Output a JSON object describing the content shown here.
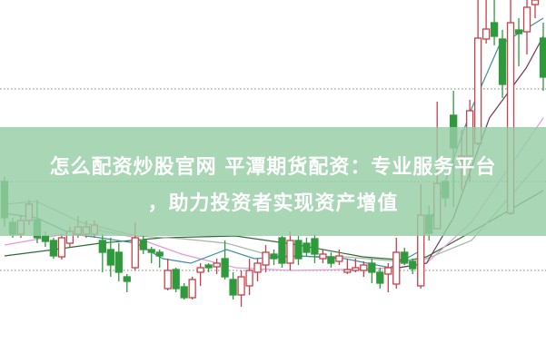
{
  "title": {
    "line1": "怎么配资炒股官网 平潭期货配资：专业服务平台",
    "line2": "，助力投资者实现资产增值"
  },
  "colors": {
    "up": "#c8404a",
    "down": "#2e9a3c",
    "banner": "#96cda5",
    "grid": "#999999"
  },
  "chart_data": {
    "type": "candlestick",
    "ylim": [
      0,
      400
    ],
    "grid": true,
    "grid_levels": [
      102,
      200,
      302
    ],
    "candles_ohlc": [
      [
        200,
        160,
        205,
        150
      ],
      [
        155,
        142,
        160,
        138
      ],
      [
        142,
        157,
        162,
        138
      ],
      [
        157,
        175,
        180,
        152
      ],
      [
        158,
        138,
        180,
        132
      ],
      [
        140,
        134,
        145,
        128
      ],
      [
        135,
        118,
        138,
        115
      ],
      [
        117,
        138,
        142,
        114
      ],
      [
        132,
        145,
        150,
        128
      ],
      [
        142,
        150,
        162,
        138
      ],
      [
        142,
        150,
        157,
        138
      ],
      [
        142,
        152,
        157,
        138
      ],
      [
        135,
        122,
        142,
        100
      ],
      [
        125,
        108,
        138,
        95
      ],
      [
        122,
        100,
        132,
        90
      ],
      [
        95,
        90,
        98,
        78
      ],
      [
        105,
        138,
        155,
        102
      ],
      [
        135,
        125,
        140,
        120
      ],
      [
        125,
        122,
        128,
        110
      ],
      [
        122,
        118,
        125,
        105
      ],
      [
        82,
        102,
        115,
        80
      ],
      [
        103,
        82,
        105,
        78
      ],
      [
        84,
        72,
        88,
        70
      ],
      [
        72,
        92,
        95,
        70
      ],
      [
        100,
        105,
        110,
        85
      ],
      [
        108,
        105,
        110,
        100
      ],
      [
        106,
        110,
        115,
        98
      ],
      [
        115,
        95,
        135,
        92
      ],
      [
        92,
        75,
        100,
        70
      ],
      [
        75,
        95,
        102,
        62
      ],
      [
        85,
        102,
        115,
        75
      ],
      [
        100,
        110,
        115,
        90
      ],
      [
        108,
        122,
        130,
        100
      ],
      [
        120,
        115,
        125,
        108
      ],
      [
        138,
        110,
        140,
        105
      ],
      [
        110,
        135,
        145,
        102
      ],
      [
        135,
        115,
        140,
        108
      ],
      [
        132,
        122,
        138,
        118
      ],
      [
        137,
        120,
        142,
        110
      ],
      [
        115,
        120,
        125,
        110
      ],
      [
        117,
        110,
        122,
        105
      ],
      [
        112,
        118,
        125,
        108
      ],
      [
        100,
        103,
        115,
        98
      ],
      [
        102,
        105,
        115,
        100
      ],
      [
        102,
        108,
        112,
        95
      ],
      [
        110,
        100,
        115,
        88
      ],
      [
        100,
        88,
        105,
        82
      ],
      [
        98,
        105,
        110,
        78
      ],
      [
        87,
        122,
        138,
        82
      ],
      [
        122,
        110,
        127,
        108
      ],
      [
        112,
        104,
        115,
        98
      ],
      [
        85,
        163,
        197,
        82
      ],
      [
        163,
        143,
        173,
        135
      ],
      [
        148,
        198,
        288,
        148
      ],
      [
        200,
        182,
        200,
        172
      ],
      [
        273,
        237,
        300,
        172
      ],
      [
        224,
        228,
        257,
        190
      ],
      [
        228,
        278,
        290,
        200
      ],
      [
        242,
        358,
        400,
        240
      ],
      [
        357,
        368,
        400,
        352
      ],
      [
        375,
        360,
        400,
        350
      ],
      [
        357,
        307,
        367,
        292
      ],
      [
        165,
        375,
        400,
        163
      ],
      [
        367,
        363,
        380,
        327
      ],
      [
        365,
        392,
        400,
        340
      ],
      [
        395,
        400,
        400,
        380
      ],
      [
        358,
        315,
        375,
        300
      ]
    ],
    "series": [
      {
        "color": "#2d6b3a",
        "points": [
          [
            0,
            118
          ],
          [
            6.1,
            125
          ],
          [
            11.7,
            132
          ],
          [
            19.4,
            138
          ],
          [
            28.3,
            140
          ],
          [
            36,
            130
          ],
          [
            43.9,
            117
          ],
          [
            49.4,
            113
          ],
          [
            51.7,
            117
          ],
          [
            58.3,
            150
          ],
          [
            66,
            190
          ]
        ]
      },
      {
        "color": "#9fb8a0",
        "points": [
          [
            0,
            175
          ],
          [
            3.9,
            178
          ],
          [
            9.4,
            155
          ],
          [
            16.1,
            140
          ],
          [
            21.7,
            137
          ],
          [
            27.2,
            132
          ],
          [
            32.8,
            118
          ],
          [
            41.7,
            117
          ],
          [
            48.3,
            112
          ],
          [
            51.7,
            115
          ],
          [
            57.2,
            135
          ],
          [
            66,
            225
          ]
        ]
      },
      {
        "color": "#e59ad8",
        "points": [
          [
            0,
            130
          ],
          [
            5,
            138
          ],
          [
            10.6,
            148
          ],
          [
            16.1,
            138
          ],
          [
            21.7,
            120
          ],
          [
            28.3,
            105
          ],
          [
            35,
            102
          ],
          [
            41.7,
            103
          ],
          [
            48.3,
            105
          ],
          [
            51.7,
            110
          ],
          [
            57.2,
            155
          ],
          [
            66,
            270
          ]
        ]
      },
      {
        "color": "#3a8fa0",
        "points": [
          [
            0,
            165
          ],
          [
            3.9,
            160
          ],
          [
            8.3,
            142
          ],
          [
            11.7,
            138
          ],
          [
            16.1,
            132
          ],
          [
            19.4,
            115
          ],
          [
            22.8,
            110
          ],
          [
            27.2,
            125
          ],
          [
            30.6,
            115
          ],
          [
            36.1,
            118
          ],
          [
            41.7,
            115
          ],
          [
            47.2,
            105
          ],
          [
            50.6,
            122
          ],
          [
            52.8,
            170
          ],
          [
            57.2,
            280
          ],
          [
            60.6,
            350
          ],
          [
            66,
            380
          ]
        ]
      },
      {
        "color": "#6a3a5a",
        "points": [
          [
            48.3,
            105
          ],
          [
            51.7,
            110
          ],
          [
            55,
            160
          ],
          [
            59.4,
            270
          ],
          [
            63.9,
            325
          ],
          [
            66,
            360
          ]
        ]
      }
    ]
  }
}
